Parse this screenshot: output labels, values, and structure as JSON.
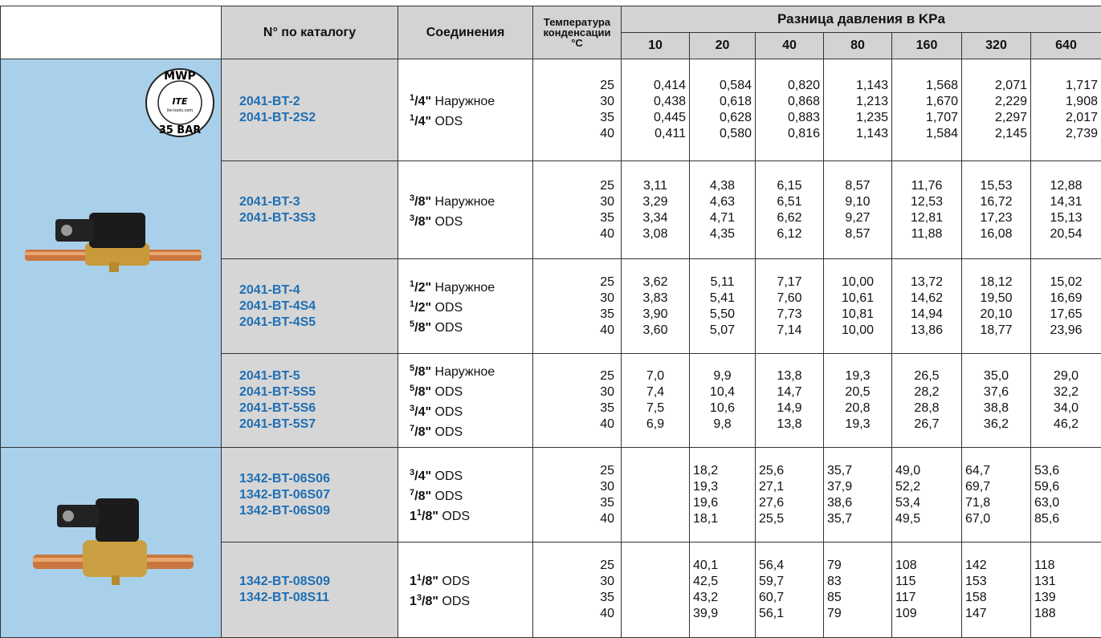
{
  "header": {
    "catalog": "N° по каталогу",
    "connections": "Соединения",
    "temperature": [
      "Температура",
      "конденсации",
      "°C"
    ],
    "pressure_title": "Разница давления в KPa",
    "pressures": [
      "10",
      "20",
      "40",
      "80",
      "160",
      "320",
      "640"
    ]
  },
  "stamp": {
    "top": "MWP",
    "brand": "ITE",
    "site": "ite-tools.com",
    "bottom": "35 BAR"
  },
  "groups": [
    {
      "catalog": [
        "2041-BT-2",
        "2041-BT-2S2"
      ],
      "connections": [
        {
          "num": "1",
          "den": "/4\"",
          "type": "Наружное"
        },
        {
          "num": "1",
          "den": "/4\"",
          "type": "ODS"
        }
      ],
      "rows": [
        {
          "temp": "25",
          "values": [
            "0,414",
            "0,584",
            "0,820",
            "1,143",
            "1,568",
            "2,071",
            "1,717"
          ]
        },
        {
          "temp": "30",
          "values": [
            "0,438",
            "0,618",
            "0,868",
            "1,213",
            "1,670",
            "2,229",
            "1,908"
          ]
        },
        {
          "temp": "35",
          "values": [
            "0,445",
            "0,628",
            "0,883",
            "1,235",
            "1,707",
            "2,297",
            "2,017"
          ]
        },
        {
          "temp": "40",
          "values": [
            "0,411",
            "0,580",
            "0,816",
            "1,143",
            "1,584",
            "2,145",
            "2,739"
          ]
        }
      ]
    },
    {
      "catalog": [
        "2041-BT-3",
        "2041-BT-3S3"
      ],
      "connections": [
        {
          "num": "3",
          "den": "/8\"",
          "type": "Наружное"
        },
        {
          "num": "3",
          "den": "/8\"",
          "type": "ODS"
        }
      ],
      "rows": [
        {
          "temp": "25",
          "values": [
            "3,11",
            "4,38",
            "6,15",
            "8,57",
            "11,76",
            "15,53",
            "12,88"
          ]
        },
        {
          "temp": "30",
          "values": [
            "3,29",
            "4,63",
            "6,51",
            "9,10",
            "12,53",
            "16,72",
            "14,31"
          ]
        },
        {
          "temp": "35",
          "values": [
            "3,34",
            "4,71",
            "6,62",
            "9,27",
            "12,81",
            "17,23",
            "15,13"
          ]
        },
        {
          "temp": "40",
          "values": [
            "3,08",
            "4,35",
            "6,12",
            "8,57",
            "11,88",
            "16,08",
            "20,54"
          ]
        }
      ]
    },
    {
      "catalog": [
        "2041-BT-4",
        "2041-BT-4S4",
        "2041-BT-4S5"
      ],
      "connections": [
        {
          "num": "1",
          "den": "/2\"",
          "type": "Наружное"
        },
        {
          "num": "1",
          "den": "/2\"",
          "type": "ODS"
        },
        {
          "num": "5",
          "den": "/8\"",
          "type": "ODS"
        }
      ],
      "rows": [
        {
          "temp": "25",
          "values": [
            "3,62",
            "5,11",
            "7,17",
            "10,00",
            "13,72",
            "18,12",
            "15,02"
          ]
        },
        {
          "temp": "30",
          "values": [
            "3,83",
            "5,41",
            "7,60",
            "10,61",
            "14,62",
            "19,50",
            "16,69"
          ]
        },
        {
          "temp": "35",
          "values": [
            "3,90",
            "5,50",
            "7,73",
            "10,81",
            "14,94",
            "20,10",
            "17,65"
          ]
        },
        {
          "temp": "40",
          "values": [
            "3,60",
            "5,07",
            "7,14",
            "10,00",
            "13,86",
            "18,77",
            "23,96"
          ]
        }
      ]
    },
    {
      "catalog": [
        "2041-BT-5",
        "2041-BT-5S5",
        "2041-BT-5S6",
        "2041-BT-5S7"
      ],
      "connections": [
        {
          "num": "5",
          "den": "/8\"",
          "type": "Наружное"
        },
        {
          "num": "5",
          "den": "/8\"",
          "type": "ODS"
        },
        {
          "num": "3",
          "den": "/4\"",
          "type": "ODS"
        },
        {
          "num": "7",
          "den": "/8\"",
          "type": "ODS"
        }
      ],
      "rows": [
        {
          "temp": "25",
          "values": [
            "7,0",
            "9,9",
            "13,8",
            "19,3",
            "26,5",
            "35,0",
            "29,0"
          ]
        },
        {
          "temp": "30",
          "values": [
            "7,4",
            "10,4",
            "14,7",
            "20,5",
            "28,2",
            "37,6",
            "32,2"
          ]
        },
        {
          "temp": "35",
          "values": [
            "7,5",
            "10,6",
            "14,9",
            "20,8",
            "28,8",
            "38,8",
            "34,0"
          ]
        },
        {
          "temp": "40",
          "values": [
            "6,9",
            "9,8",
            "13,8",
            "19,3",
            "26,7",
            "36,2",
            "46,2"
          ]
        }
      ]
    },
    {
      "catalog": [
        "1342-BT-06S06",
        "1342-BT-06S07",
        "1342-BT-06S09"
      ],
      "connections": [
        {
          "num": "3",
          "den": "/4\"",
          "type": "ODS"
        },
        {
          "num": "7",
          "den": "/8\"",
          "type": "ODS"
        },
        {
          "whole": "1",
          "num": "1",
          "den": "/8\"",
          "type": "ODS"
        }
      ],
      "rows": [
        {
          "temp": "25",
          "values": [
            null,
            "18,2",
            "25,6",
            "35,7",
            "49,0",
            "64,7",
            "53,6"
          ]
        },
        {
          "temp": "30",
          "values": [
            null,
            "19,3",
            "27,1",
            "37,9",
            "52,2",
            "69,7",
            "59,6"
          ]
        },
        {
          "temp": "35",
          "values": [
            null,
            "19,6",
            "27,6",
            "38,6",
            "53,4",
            "71,8",
            "63,0"
          ]
        },
        {
          "temp": "40",
          "values": [
            null,
            "18,1",
            "25,5",
            "35,7",
            "49,5",
            "67,0",
            "85,6"
          ]
        }
      ]
    },
    {
      "catalog": [
        "1342-BT-08S09",
        "1342-BT-08S11"
      ],
      "connections": [
        {
          "whole": "1",
          "num": "1",
          "den": "/8\"",
          "type": "ODS"
        },
        {
          "whole": "1",
          "num": "3",
          "den": "/8\"",
          "type": "ODS"
        }
      ],
      "rows": [
        {
          "temp": "25",
          "values": [
            null,
            "40,1",
            "56,4",
            "79",
            "108",
            "142",
            "118"
          ]
        },
        {
          "temp": "30",
          "values": [
            null,
            "42,5",
            "59,7",
            "83",
            "115",
            "153",
            "131"
          ]
        },
        {
          "temp": "35",
          "values": [
            null,
            "43,2",
            "60,7",
            "85",
            "117",
            "158",
            "139"
          ]
        },
        {
          "temp": "40",
          "values": [
            null,
            "39,9",
            "56,1",
            "79",
            "109",
            "147",
            "188"
          ]
        }
      ]
    }
  ]
}
